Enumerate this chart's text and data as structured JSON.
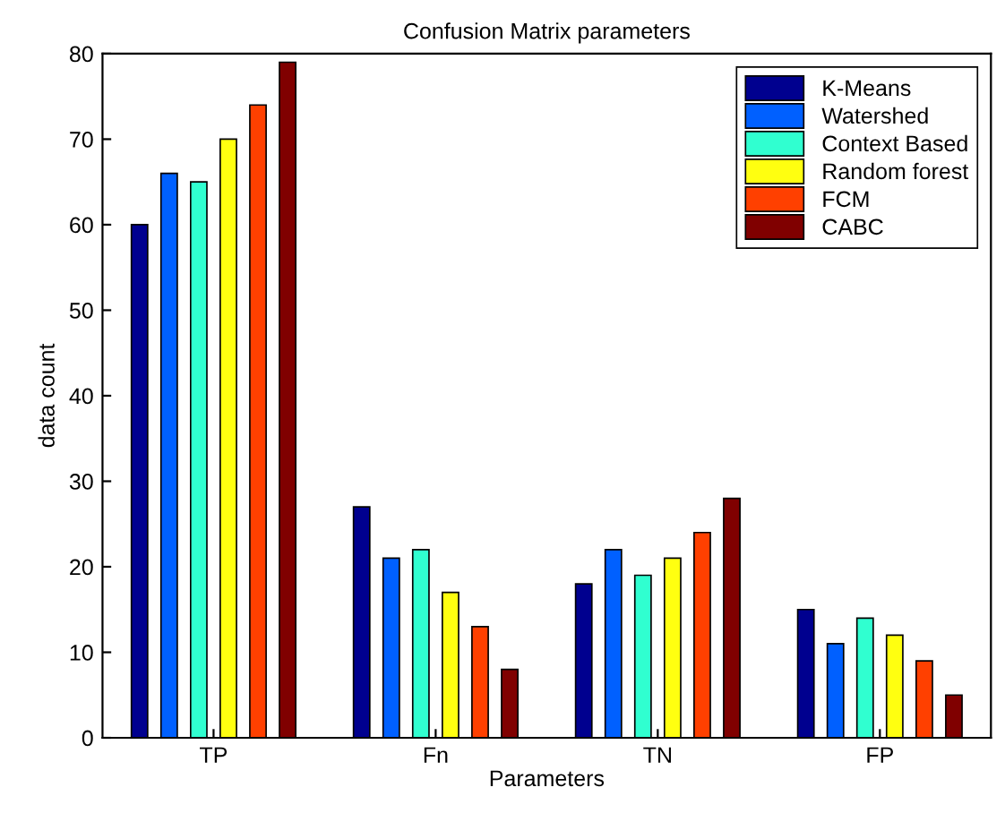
{
  "chart_data": {
    "type": "bar",
    "title": "Confusion Matrix parameters",
    "xlabel": "Parameters",
    "ylabel": "data count",
    "categories": [
      "TP",
      "Fn",
      "TN",
      "FP"
    ],
    "series": [
      {
        "name": "K-Means",
        "color": "#00008f",
        "values": [
          60,
          27,
          18,
          15
        ]
      },
      {
        "name": "Watershed",
        "color": "#0060ff",
        "values": [
          66,
          21,
          22,
          11
        ]
      },
      {
        "name": "Context Based",
        "color": "#30ffd0",
        "values": [
          65,
          22,
          19,
          14
        ]
      },
      {
        "name": "Random forest",
        "color": "#ffff10",
        "values": [
          70,
          17,
          21,
          12
        ]
      },
      {
        "name": "FCM",
        "color": "#ff4000",
        "values": [
          74,
          13,
          24,
          9
        ]
      },
      {
        "name": "CABC",
        "color": "#800000",
        "values": [
          79,
          8,
          28,
          5
        ]
      }
    ],
    "ylim": [
      0,
      80
    ],
    "yticks": [
      0,
      10,
      20,
      30,
      40,
      50,
      60,
      70,
      80
    ],
    "grid": false,
    "legend": "top right"
  }
}
